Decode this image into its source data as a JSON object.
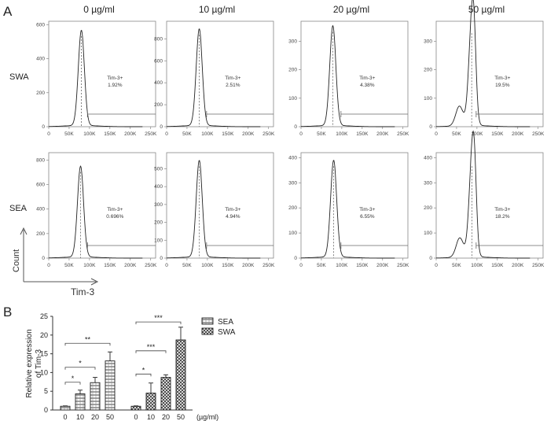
{
  "figure": {
    "panel_a_label": "A",
    "panel_b_label": "B"
  },
  "panel_a": {
    "concentrations": [
      "0 µg/ml",
      "10 µg/ml",
      "20 µg/ml",
      "50 µg/ml"
    ],
    "row_labels": [
      "SWA",
      "SEA"
    ],
    "axis_corner": {
      "y_label": "Count",
      "x_label": "Tim-3"
    },
    "gate_label": "Tim-3+"
  },
  "chart_data": [
    {
      "type": "histogram-grid",
      "x_ticks": [
        "0",
        "50K",
        "100K",
        "150K",
        "200K",
        "250K"
      ],
      "xlim": [
        0,
        262144
      ],
      "rows": [
        {
          "name": "SWA",
          "panels": [
            {
              "concentration": "0 µg/ml",
              "y_ticks": [
                "0",
                "200",
                "400",
                "600"
              ],
              "ylim": [
                0,
                620
              ],
              "peak_x": 80000,
              "peak_y": 560,
              "gate_label": "Tim-3+",
              "gate_pct": "1.92%"
            },
            {
              "concentration": "10 µg/ml",
              "y_ticks": [
                "0",
                "200",
                "400",
                "600",
                "800"
              ],
              "ylim": [
                0,
                960
              ],
              "peak_x": 80000,
              "peak_y": 880,
              "gate_label": "Tim-3+",
              "gate_pct": "2.51%"
            },
            {
              "concentration": "20 µg/ml",
              "y_ticks": [
                "0",
                "100",
                "200",
                "300"
              ],
              "ylim": [
                0,
                370
              ],
              "peak_x": 78000,
              "peak_y": 350,
              "gate_label": "Tim-3+",
              "gate_pct": "4.38%"
            },
            {
              "concentration": "50 µg/ml",
              "y_ticks": [
                "0",
                "100",
                "200",
                "300"
              ],
              "ylim": [
                0,
                370
              ],
              "peak_x": 87000,
              "peak_y": 345,
              "gate_label": "Tim-3+",
              "gate_pct": "19.5%"
            }
          ]
        },
        {
          "name": "SEA",
          "panels": [
            {
              "concentration": "0 µg/ml",
              "y_ticks": [
                "0",
                "200",
                "400",
                "600",
                "800"
              ],
              "ylim": [
                0,
                860
              ],
              "peak_x": 78000,
              "peak_y": 740,
              "gate_label": "Tim-3+",
              "gate_pct": "0.696%"
            },
            {
              "concentration": "10 µg/ml",
              "y_ticks": [
                "0",
                "100",
                "200",
                "300",
                "400",
                "500"
              ],
              "ylim": [
                0,
                590
              ],
              "peak_x": 80000,
              "peak_y": 540,
              "gate_label": "Tim-3+",
              "gate_pct": "4.94%"
            },
            {
              "concentration": "20 µg/ml",
              "y_ticks": [
                "0",
                "100",
                "200",
                "300",
                "400"
              ],
              "ylim": [
                0,
                420
              ],
              "peak_x": 80000,
              "peak_y": 385,
              "gate_label": "Tim-3+",
              "gate_pct": "6.55%"
            },
            {
              "concentration": "50 µg/ml",
              "y_ticks": [
                "0",
                "100",
                "200",
                "300",
                "400"
              ],
              "ylim": [
                0,
                420
              ],
              "peak_x": 88000,
              "peak_y": 385,
              "gate_label": "Tim-3+",
              "gate_pct": "18.2%"
            }
          ]
        }
      ]
    },
    {
      "type": "bar",
      "categories": [
        "0",
        "10",
        "20",
        "50"
      ],
      "x_unit": "(µg/ml)",
      "ylabel": "Relative expression of Tim-3",
      "ylim": [
        0,
        25
      ],
      "y_ticks": [
        "0",
        "5",
        "10",
        "15",
        "20",
        "25"
      ],
      "legend_position": "right",
      "series": [
        {
          "name": "SEA",
          "values": [
            1.0,
            4.3,
            7.3,
            13.1
          ],
          "errors": [
            0.1,
            1.0,
            1.4,
            2.4
          ]
        },
        {
          "name": "SWA",
          "values": [
            1.0,
            4.5,
            8.7,
            18.7
          ],
          "errors": [
            0.1,
            2.7,
            0.7,
            3.4
          ]
        }
      ],
      "significance": [
        {
          "series": "SEA",
          "compare": [
            "0",
            "10"
          ],
          "label": "*"
        },
        {
          "series": "SEA",
          "compare": [
            "0",
            "20"
          ],
          "label": "*"
        },
        {
          "series": "SEA",
          "compare": [
            "0",
            "50"
          ],
          "label": "**"
        },
        {
          "series": "SWA",
          "compare": [
            "0",
            "10"
          ],
          "label": "*"
        },
        {
          "series": "SWA",
          "compare": [
            "0",
            "20"
          ],
          "label": "***"
        },
        {
          "series": "SWA",
          "compare": [
            "0",
            "50"
          ],
          "label": "***"
        }
      ]
    }
  ]
}
